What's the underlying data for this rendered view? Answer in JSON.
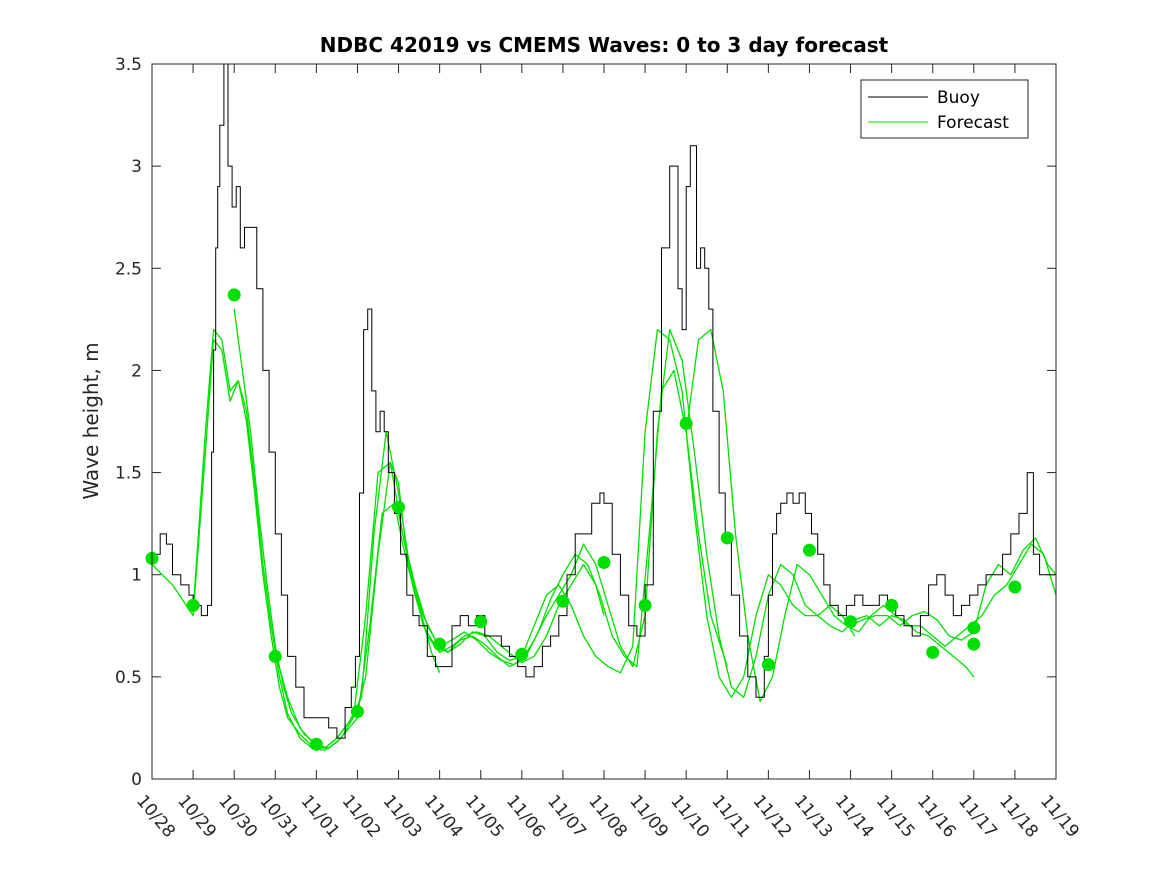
{
  "chart_data": {
    "type": "line",
    "title": "NDBC 42019 vs CMEMS Waves: 0 to 3 day forecast",
    "xlabel": "",
    "ylabel": "Wave height, m",
    "xlim": [
      0,
      22
    ],
    "ylim": [
      0,
      3.5
    ],
    "x_tick_labels": [
      "10/28",
      "10/29",
      "10/30",
      "10/31",
      "11/01",
      "11/02",
      "11/03",
      "11/04",
      "11/05",
      "11/06",
      "11/07",
      "11/08",
      "11/09",
      "11/10",
      "11/11",
      "11/12",
      "11/13",
      "11/14",
      "11/15",
      "11/16",
      "11/17",
      "11/18",
      "11/19"
    ],
    "y_ticks": [
      0,
      0.5,
      1,
      1.5,
      2,
      2.5,
      3,
      3.5
    ],
    "y_tick_labels": [
      "0",
      "0.5",
      "1",
      "1.5",
      "2",
      "2.5",
      "3",
      "3.5"
    ],
    "legend": {
      "position": "top-right",
      "entries": [
        {
          "label": "Buoy",
          "color": "#000000"
        },
        {
          "label": "Forecast",
          "color": "#00e000"
        }
      ]
    },
    "buoy": {
      "name": "Buoy",
      "color": "#000000",
      "x": [
        0,
        0.2,
        0.35,
        0.5,
        0.7,
        0.9,
        1.0,
        1.2,
        1.35,
        1.45,
        1.5,
        1.55,
        1.6,
        1.65,
        1.75,
        1.85,
        1.95,
        2.05,
        2.15,
        2.25,
        2.4,
        2.55,
        2.7,
        2.85,
        3.0,
        3.15,
        3.3,
        3.5,
        3.7,
        3.9,
        4.1,
        4.3,
        4.5,
        4.7,
        4.85,
        4.95,
        5.05,
        5.15,
        5.25,
        5.35,
        5.45,
        5.55,
        5.65,
        5.75,
        5.9,
        6.05,
        6.2,
        6.35,
        6.5,
        6.7,
        6.9,
        7.1,
        7.3,
        7.5,
        7.7,
        7.9,
        8.1,
        8.3,
        8.5,
        8.7,
        8.9,
        9.1,
        9.3,
        9.5,
        9.7,
        9.9,
        10.1,
        10.3,
        10.5,
        10.7,
        10.9,
        11.0,
        11.2,
        11.4,
        11.6,
        11.8,
        12.0,
        12.2,
        12.4,
        12.6,
        12.8,
        12.9,
        13.0,
        13.1,
        13.25,
        13.35,
        13.45,
        13.55,
        13.65,
        13.8,
        13.95,
        14.1,
        14.3,
        14.5,
        14.7,
        14.9,
        15.0,
        15.1,
        15.2,
        15.3,
        15.45,
        15.6,
        15.75,
        15.9,
        16.05,
        16.2,
        16.35,
        16.5,
        16.7,
        16.9,
        17.1,
        17.3,
        17.5,
        17.7,
        17.9,
        18.1,
        18.3,
        18.5,
        18.7,
        18.9,
        19.1,
        19.3,
        19.5,
        19.7,
        19.9,
        20.1,
        20.3,
        20.5,
        20.7,
        20.9,
        21.1,
        21.3,
        21.45,
        21.6,
        21.8,
        22.0
      ],
      "y": [
        1.1,
        1.2,
        1.15,
        1.0,
        0.95,
        0.9,
        0.85,
        0.8,
        0.85,
        1.6,
        2.1,
        2.6,
        2.9,
        3.2,
        3.5,
        3.0,
        2.8,
        2.9,
        2.6,
        2.7,
        2.7,
        2.4,
        2.0,
        1.6,
        1.2,
        0.9,
        0.6,
        0.45,
        0.3,
        0.3,
        0.3,
        0.25,
        0.2,
        0.35,
        0.45,
        0.6,
        1.4,
        2.2,
        2.3,
        1.9,
        1.7,
        1.8,
        1.7,
        1.5,
        1.3,
        1.1,
        0.9,
        0.8,
        0.75,
        0.6,
        0.55,
        0.55,
        0.75,
        0.8,
        0.75,
        0.8,
        0.7,
        0.7,
        0.65,
        0.6,
        0.55,
        0.5,
        0.55,
        0.65,
        0.7,
        0.8,
        1.0,
        1.2,
        1.2,
        1.35,
        1.4,
        1.35,
        1.1,
        0.9,
        0.75,
        0.7,
        0.95,
        1.8,
        2.6,
        3.0,
        2.4,
        2.2,
        2.9,
        3.1,
        2.5,
        2.6,
        2.5,
        2.3,
        1.8,
        1.4,
        1.2,
        0.9,
        0.7,
        0.5,
        0.4,
        0.6,
        0.9,
        1.2,
        1.3,
        1.35,
        1.4,
        1.35,
        1.4,
        1.3,
        1.2,
        1.1,
        0.95,
        0.85,
        0.8,
        0.85,
        0.9,
        0.85,
        0.85,
        0.9,
        0.85,
        0.8,
        0.75,
        0.7,
        0.8,
        0.95,
        1.0,
        0.9,
        0.8,
        0.85,
        0.9,
        0.95,
        1.0,
        1.0,
        1.1,
        1.2,
        1.3,
        1.5,
        1.1,
        1.0,
        1.0,
        1.0
      ]
    },
    "forecast_series": [
      {
        "name": "Forecast",
        "color": "#00e000",
        "x": [
          0,
          0.5,
          1.0,
          1.3,
          1.5,
          1.7,
          1.9,
          2.1,
          2.3,
          2.5,
          2.7,
          2.9,
          3.1,
          3.3,
          3.6,
          3.9,
          4.2,
          4.5,
          4.8,
          5.0,
          5.2,
          5.5,
          5.8,
          6.0,
          6.2,
          6.5,
          6.8,
          7.0
        ],
        "y": [
          1.05,
          0.95,
          0.8,
          1.6,
          2.15,
          2.1,
          1.85,
          1.95,
          1.75,
          1.4,
          1.0,
          0.7,
          0.45,
          0.3,
          0.22,
          0.16,
          0.15,
          0.2,
          0.28,
          0.35,
          0.5,
          1.1,
          1.55,
          1.45,
          1.1,
          0.85,
          0.62,
          0.52
        ]
      },
      {
        "name": "Forecast",
        "color": "#00e000",
        "x": [
          1.0,
          1.3,
          1.5,
          1.7,
          1.9,
          2.1,
          2.3,
          2.5,
          2.7,
          2.9,
          3.1,
          3.3,
          3.6,
          3.9,
          4.2,
          4.5,
          4.8,
          5.0,
          5.3,
          5.6,
          5.9,
          6.1,
          6.4,
          6.7,
          7.0,
          7.3,
          7.6,
          7.9,
          8.2,
          8.5,
          8.8,
          9.0,
          9.3,
          9.6,
          9.9,
          10.2,
          10.5,
          10.8,
          11.0
        ],
        "y": [
          0.82,
          1.7,
          2.2,
          2.15,
          1.9,
          1.95,
          1.8,
          1.45,
          1.05,
          0.75,
          0.5,
          0.32,
          0.2,
          0.15,
          0.14,
          0.18,
          0.25,
          0.3,
          0.75,
          1.3,
          1.35,
          1.15,
          0.9,
          0.7,
          0.62,
          0.65,
          0.7,
          0.72,
          0.7,
          0.65,
          0.6,
          0.57,
          0.6,
          0.7,
          0.85,
          0.95,
          1.05,
          0.95,
          0.8
        ]
      },
      {
        "name": "Forecast",
        "color": "#00e000",
        "x": [
          2.0,
          2.2,
          2.4,
          2.6,
          2.8,
          3.0,
          3.2,
          3.4,
          3.7,
          4.0,
          4.3,
          4.6,
          4.9,
          5.2,
          5.5,
          5.8,
          6.1,
          6.4,
          6.7,
          7.0,
          7.3,
          7.6,
          7.9,
          8.2,
          8.5,
          8.8,
          9.1,
          9.4,
          9.7,
          10.0,
          10.3,
          10.6,
          10.9,
          11.2,
          11.5,
          11.8,
          12.1,
          12.4,
          12.7,
          13.0,
          13.3,
          13.6,
          14.0
        ],
        "y": [
          2.3,
          2.0,
          1.7,
          1.3,
          0.95,
          0.65,
          0.45,
          0.32,
          0.22,
          0.17,
          0.15,
          0.2,
          0.3,
          0.8,
          1.5,
          1.55,
          1.2,
          0.95,
          0.75,
          0.65,
          0.68,
          0.72,
          0.68,
          0.62,
          0.58,
          0.56,
          0.6,
          0.72,
          0.88,
          1.0,
          1.1,
          1.05,
          0.9,
          0.7,
          0.6,
          0.55,
          1.2,
          1.9,
          2.0,
          1.7,
          1.2,
          0.8,
          0.55
        ]
      },
      {
        "name": "Forecast",
        "color": "#00e000",
        "x": [
          3.0,
          3.3,
          3.6,
          3.9,
          4.2,
          4.5,
          4.8,
          5.1,
          5.4,
          5.7,
          6.0,
          6.3,
          6.6,
          6.9,
          7.2,
          7.5,
          7.8,
          8.1,
          8.4,
          8.7,
          9.0,
          9.3,
          9.6,
          9.9,
          10.2,
          10.5,
          10.8,
          11.1,
          11.4,
          11.7,
          12.0,
          12.3,
          12.6,
          12.9,
          13.2,
          13.5,
          13.8,
          14.1,
          14.4,
          14.7,
          15.0,
          15.3,
          15.6,
          15.9,
          16.2,
          16.5,
          16.8,
          17.1
        ],
        "y": [
          0.62,
          0.4,
          0.25,
          0.18,
          0.15,
          0.2,
          0.28,
          0.4,
          1.2,
          1.7,
          1.4,
          1.0,
          0.75,
          0.65,
          0.62,
          0.68,
          0.7,
          0.66,
          0.6,
          0.55,
          0.58,
          0.68,
          0.8,
          0.9,
          1.0,
          1.15,
          1.05,
          0.85,
          0.65,
          0.55,
          0.8,
          1.7,
          2.2,
          2.05,
          1.6,
          1.1,
          0.7,
          0.45,
          0.4,
          0.6,
          0.9,
          1.05,
          1.0,
          0.85,
          0.8,
          0.85,
          0.8,
          0.7
        ]
      },
      {
        "name": "Forecast",
        "color": "#00e000",
        "x": [
          6.0,
          6.3,
          6.6,
          6.9,
          7.2,
          7.5,
          7.8,
          8.1,
          8.4,
          8.7,
          9.0,
          9.3,
          9.6,
          9.9,
          10.2,
          10.5,
          10.8,
          11.1,
          11.4,
          11.7,
          12.0,
          12.3,
          12.6,
          12.9,
          13.2,
          13.5,
          13.8,
          14.1,
          14.4,
          14.7,
          15.0,
          15.3,
          15.6,
          15.9,
          16.2,
          16.5,
          16.8,
          17.1,
          17.4,
          17.7,
          18.0,
          18.3,
          18.6,
          18.9,
          19.2,
          19.5,
          19.8,
          20.0
        ],
        "y": [
          1.3,
          1.0,
          0.8,
          0.68,
          0.62,
          0.66,
          0.72,
          0.7,
          0.62,
          0.58,
          0.6,
          0.75,
          0.9,
          0.95,
          0.85,
          0.7,
          0.6,
          0.55,
          0.52,
          0.65,
          1.7,
          2.2,
          2.15,
          1.9,
          1.3,
          0.8,
          0.5,
          0.4,
          0.5,
          0.8,
          1.0,
          0.95,
          0.85,
          0.8,
          0.8,
          0.75,
          0.72,
          0.78,
          0.8,
          0.75,
          0.8,
          0.78,
          0.72,
          0.7,
          0.65,
          0.6,
          0.55,
          0.5
        ]
      },
      {
        "name": "Forecast",
        "color": "#00e000",
        "x": [
          13.0,
          13.3,
          13.6,
          13.9,
          14.2,
          14.5,
          14.8,
          15.1,
          15.4,
          15.7,
          16.0,
          16.3,
          16.6,
          16.9,
          17.2,
          17.5,
          17.8,
          18.1,
          18.4,
          18.7,
          19.0,
          19.3,
          19.6,
          19.9,
          20.2,
          20.5,
          20.8,
          21.1,
          21.4,
          21.7,
          22.0
        ],
        "y": [
          1.7,
          2.15,
          2.2,
          1.9,
          1.2,
          0.7,
          0.38,
          0.5,
          0.8,
          1.05,
          1.0,
          0.9,
          0.8,
          0.75,
          0.72,
          0.8,
          0.85,
          0.8,
          0.75,
          0.75,
          0.7,
          0.65,
          0.7,
          0.75,
          0.8,
          0.9,
          0.95,
          1.05,
          1.15,
          1.1,
          0.9
        ]
      },
      {
        "name": "Forecast",
        "color": "#00e000",
        "x": [
          17.0,
          17.3,
          17.6,
          17.9,
          18.2,
          18.5,
          18.8,
          19.1,
          19.4,
          19.7,
          20.0,
          20.3,
          20.6,
          20.9,
          21.2,
          21.5,
          21.8,
          22.0
        ],
        "y": [
          0.75,
          0.78,
          0.8,
          0.8,
          0.75,
          0.8,
          0.82,
          0.78,
          0.7,
          0.68,
          0.72,
          0.95,
          1.05,
          1.0,
          1.12,
          1.18,
          1.05,
          1.0
        ]
      }
    ],
    "forecast_markers": {
      "x": [
        0,
        1,
        2,
        3,
        4,
        5,
        6,
        7,
        8,
        9,
        10,
        11,
        12,
        13,
        14,
        15,
        16,
        17,
        18,
        19,
        20,
        20,
        21
      ],
      "y": [
        1.08,
        0.85,
        2.37,
        0.6,
        0.17,
        0.33,
        1.33,
        0.66,
        0.77,
        0.61,
        0.87,
        1.06,
        0.85,
        1.74,
        1.18,
        0.56,
        1.12,
        0.77,
        0.85,
        0.62,
        0.66,
        0.74,
        0.94
      ]
    }
  }
}
